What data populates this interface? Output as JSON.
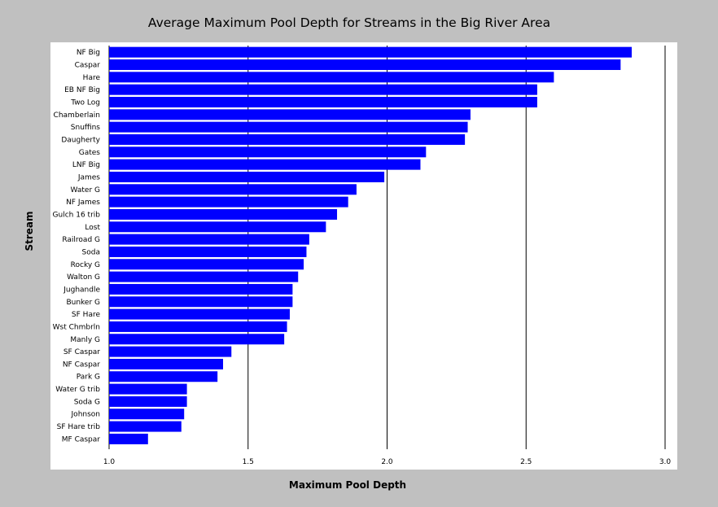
{
  "chart_data": {
    "type": "bar",
    "orientation": "horizontal",
    "title": "Average Maximum Pool Depth for Streams in the Big River Area",
    "xlabel": "Maximum Pool Depth",
    "ylabel": "Stream",
    "xlim": [
      1.0,
      3.0
    ],
    "xticks": [
      "1.0",
      "1.5",
      "2.0",
      "2.5",
      "3.0"
    ],
    "grid": "vertical lines at major x ticks",
    "bar_color": "#0000ff",
    "categories": [
      "NF Big",
      "Caspar",
      "Hare",
      "EB NF Big",
      "Two Log",
      "Chamberlain",
      "Snuffins",
      "Daugherty",
      "Gates",
      "LNF Big",
      "James",
      "Water G",
      "NF James",
      "Gulch 16 trib",
      "Lost",
      "Railroad G",
      "Soda",
      "Rocky G",
      "Walton G",
      "Jughandle",
      "Bunker G",
      "SF Hare",
      "Wst Chmbrln",
      "Manly G",
      "SF Caspar",
      "NF Caspar",
      "Park G",
      "Water G trib",
      "Soda G",
      "Johnson",
      "SF Hare trib",
      "MF Caspar"
    ],
    "values": [
      2.88,
      2.84,
      2.6,
      2.54,
      2.54,
      2.3,
      2.29,
      2.28,
      2.14,
      2.12,
      1.99,
      1.89,
      1.86,
      1.82,
      1.78,
      1.72,
      1.71,
      1.7,
      1.68,
      1.66,
      1.66,
      1.65,
      1.64,
      1.63,
      1.44,
      1.41,
      1.39,
      1.28,
      1.28,
      1.27,
      1.26,
      1.14
    ]
  }
}
